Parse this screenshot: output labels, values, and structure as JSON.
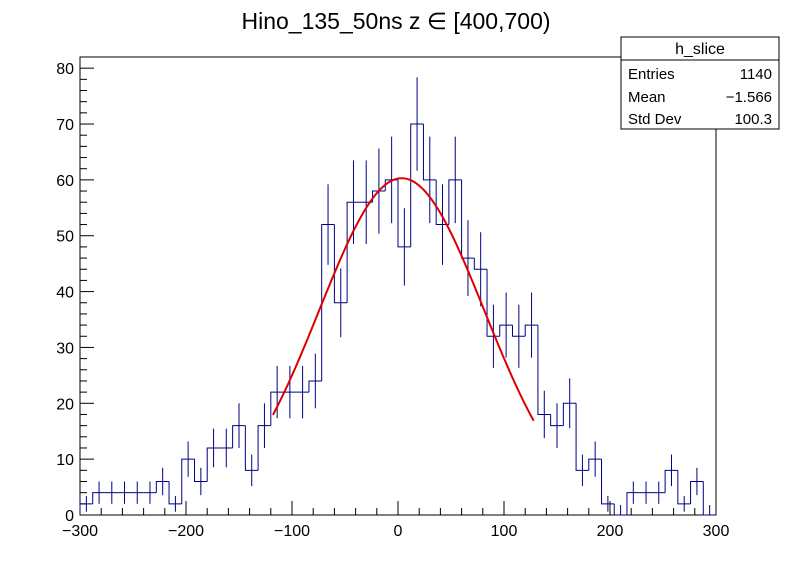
{
  "chart_data": {
    "type": "histogram",
    "title": "Hino_135_50ns z  ∈ [400,700)",
    "xlabel": "",
    "ylabel": "",
    "xlim": [
      -300,
      300
    ],
    "ylim": [
      0,
      82
    ],
    "bin_width": 12,
    "x_ticks": [
      -300,
      -200,
      -100,
      0,
      100,
      200,
      300
    ],
    "x_tick_labels": [
      "−300",
      "−200",
      "−100",
      "0",
      "100",
      "200",
      "300"
    ],
    "y_ticks": [
      0,
      10,
      20,
      30,
      40,
      50,
      60,
      70,
      80
    ],
    "y_tick_labels": [
      "0",
      "10",
      "20",
      "30",
      "40",
      "50",
      "60",
      "70",
      "80"
    ],
    "line_color": "#000080",
    "fit_color": "#dd0000",
    "counts": [
      2,
      4,
      4,
      4,
      4,
      4,
      6,
      2,
      10,
      6,
      12,
      12,
      16,
      8,
      16,
      22,
      22,
      22,
      24,
      52,
      38,
      56,
      56,
      58,
      60,
      48,
      70,
      60,
      52,
      60,
      46,
      44,
      32,
      34,
      32,
      34,
      18,
      16,
      20,
      8,
      10,
      2,
      0,
      4,
      4,
      4,
      8,
      2,
      6,
      0
    ],
    "fit": {
      "function": "gaus",
      "constant": 60.3,
      "mean": 3.5,
      "sigma": 78,
      "range": [
        -118,
        128
      ]
    },
    "stats": {
      "title": "h_slice",
      "rows": [
        {
          "label": "Entries",
          "value": "1140"
        },
        {
          "label": "Mean",
          "value": "−1.566"
        },
        {
          "label": "Std Dev",
          "value": "100.3"
        }
      ]
    }
  }
}
